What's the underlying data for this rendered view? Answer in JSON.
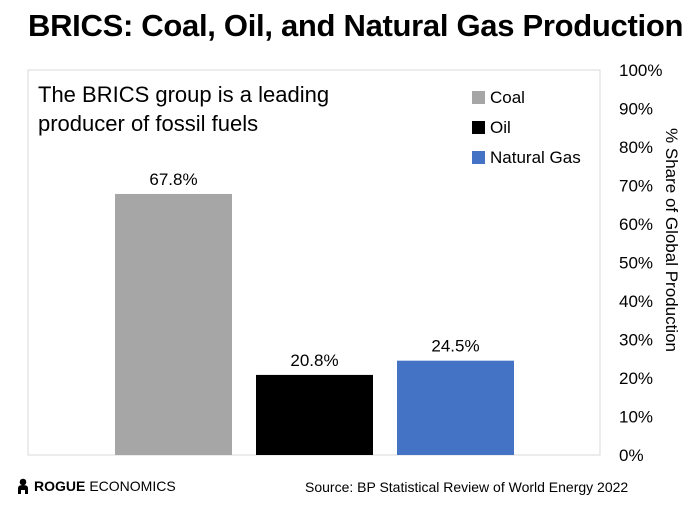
{
  "title": "BRICS: Coal, Oil, and Natural Gas Production",
  "chart_data": {
    "type": "bar",
    "categories": [
      "Coal",
      "Oil",
      "Natural Gas"
    ],
    "values": [
      67.8,
      20.8,
      24.5
    ],
    "value_labels": [
      "67.8%",
      "20.8%",
      "24.5%"
    ],
    "colors": [
      "#a6a6a6",
      "#000000",
      "#4472c4"
    ],
    "annotation": [
      "The BRICS group is a leading",
      "producer of fossil fuels"
    ],
    "ylabel": "% Share of Global Production",
    "yaxis_position": "right",
    "ylim": [
      0,
      100
    ],
    "yticks": [
      "0%",
      "10%",
      "20%",
      "30%",
      "40%",
      "50%",
      "60%",
      "70%",
      "80%",
      "90%",
      "100%"
    ],
    "grid": false,
    "legend": {
      "placement": "top-right",
      "entries": [
        "Coal",
        "Oil",
        "Natural Gas"
      ]
    }
  },
  "footer": {
    "logo_brand": "ROGUE",
    "logo_rest": "ECONOMICS",
    "source": "Source: BP Statistical Review of World Energy 2022"
  }
}
